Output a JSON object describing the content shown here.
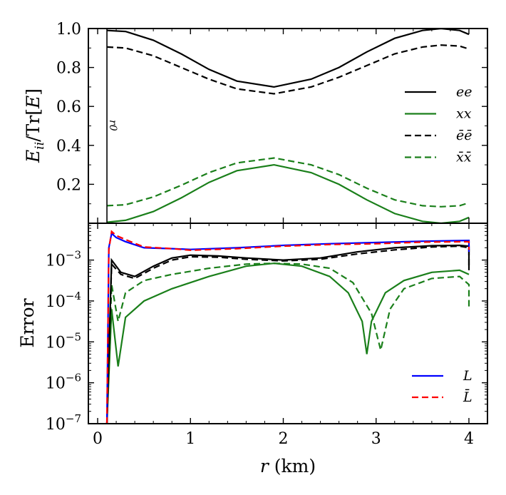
{
  "chart_data": [
    {
      "type": "line",
      "panel": "top",
      "ylabel": "E_ii/Tr[E]",
      "ylabel_parts": {
        "main": "E",
        "sub": "ii",
        "slash": "/Tr[",
        "mid": "E",
        "end": "]"
      },
      "xlim": [
        -0.1,
        4.2
      ],
      "ylim": [
        0.0,
        1.0
      ],
      "yticks": [
        {
          "value": 0.2,
          "label": "0.2"
        },
        {
          "value": 0.4,
          "label": "0.4"
        },
        {
          "value": 0.6,
          "label": "0.6"
        },
        {
          "value": 0.8,
          "label": "0.8"
        },
        {
          "value": 1.0,
          "label": "1.0"
        }
      ],
      "annotation": {
        "text": "r0",
        "x": 0.1
      },
      "legend_position": "right",
      "series": [
        {
          "name": "ee",
          "label": "ee",
          "color": "#000000",
          "dash": "solid",
          "x": [
            0.1,
            0.3,
            0.6,
            0.9,
            1.2,
            1.5,
            1.9,
            2.3,
            2.6,
            2.9,
            3.2,
            3.5,
            3.7,
            3.9,
            4.0
          ],
          "y": [
            0.99,
            0.985,
            0.94,
            0.87,
            0.79,
            0.73,
            0.7,
            0.74,
            0.8,
            0.88,
            0.95,
            0.99,
            1.0,
            0.99,
            0.97
          ]
        },
        {
          "name": "xx",
          "label": "xx",
          "color": "#1a7f1a",
          "dash": "solid",
          "x": [
            0.1,
            0.3,
            0.6,
            0.9,
            1.2,
            1.5,
            1.9,
            2.3,
            2.6,
            2.9,
            3.2,
            3.5,
            3.7,
            3.9,
            4.0
          ],
          "y": [
            0.005,
            0.015,
            0.06,
            0.13,
            0.21,
            0.27,
            0.3,
            0.26,
            0.2,
            0.12,
            0.05,
            0.01,
            0.0,
            0.01,
            0.03
          ]
        },
        {
          "name": "eebar",
          "label": "ēē",
          "color": "#000000",
          "dash": "dashed",
          "x": [
            0.1,
            0.3,
            0.6,
            0.9,
            1.2,
            1.5,
            1.9,
            2.3,
            2.6,
            2.9,
            3.2,
            3.5,
            3.7,
            3.9,
            4.0
          ],
          "y": [
            0.905,
            0.9,
            0.86,
            0.8,
            0.74,
            0.69,
            0.665,
            0.7,
            0.75,
            0.81,
            0.87,
            0.905,
            0.915,
            0.91,
            0.895
          ]
        },
        {
          "name": "xxbar",
          "label": "x̄x̄",
          "color": "#1a7f1a",
          "dash": "dashed",
          "x": [
            0.1,
            0.3,
            0.6,
            0.9,
            1.2,
            1.5,
            1.9,
            2.3,
            2.6,
            2.9,
            3.2,
            3.5,
            3.7,
            3.9,
            4.0
          ],
          "y": [
            0.09,
            0.095,
            0.135,
            0.195,
            0.26,
            0.31,
            0.335,
            0.3,
            0.25,
            0.18,
            0.12,
            0.09,
            0.085,
            0.09,
            0.105
          ]
        }
      ]
    },
    {
      "type": "line",
      "panel": "bottom",
      "ylabel": "Error",
      "xlabel": "r (km)",
      "xlabel_parts": {
        "var": "r",
        "unit": " (km)"
      },
      "xlim": [
        -0.1,
        4.2
      ],
      "xticks": [
        {
          "value": 0,
          "label": "0"
        },
        {
          "value": 1,
          "label": "1"
        },
        {
          "value": 2,
          "label": "2"
        },
        {
          "value": 3,
          "label": "3"
        },
        {
          "value": 4,
          "label": "4"
        }
      ],
      "yscale": "log",
      "ylim_log10": [
        -7,
        -2.1
      ],
      "yticks": [
        {
          "value": -7,
          "label": "-7"
        },
        {
          "value": -6,
          "label": "-6"
        },
        {
          "value": -5,
          "label": "-5"
        },
        {
          "value": -4,
          "label": "-4"
        },
        {
          "value": -3,
          "label": "-3"
        }
      ],
      "ytick_base": "10",
      "legend_position": "bottom-right",
      "series": [
        {
          "name": "L",
          "label": "L",
          "color": "#0000ff",
          "dash": "solid",
          "legend": true,
          "x": [
            0.1,
            0.12,
            0.15,
            0.2,
            0.3,
            0.5,
            0.8,
            1.0,
            1.5,
            2.0,
            2.5,
            3.0,
            3.5,
            4.0,
            4.0
          ],
          "log10y": [
            -7.0,
            -2.7,
            -2.35,
            -2.45,
            -2.55,
            -2.7,
            -2.72,
            -2.74,
            -2.7,
            -2.64,
            -2.6,
            -2.57,
            -2.54,
            -2.52,
            -2.8
          ]
        },
        {
          "name": "Lbar",
          "label": "L̄",
          "color": "#ff0000",
          "dash": "dashed",
          "legend": true,
          "x": [
            0.1,
            0.12,
            0.15,
            0.2,
            0.3,
            0.5,
            0.8,
            1.0,
            1.5,
            2.0,
            2.5,
            3.0,
            3.5,
            4.0,
            4.0
          ],
          "log10y": [
            -7.0,
            -2.75,
            -2.3,
            -2.4,
            -2.5,
            -2.68,
            -2.72,
            -2.76,
            -2.72,
            -2.66,
            -2.62,
            -2.6,
            -2.56,
            -2.55,
            -2.75
          ]
        },
        {
          "name": "ee_err",
          "color": "#000000",
          "dash": "solid",
          "legend": false,
          "x": [
            0.1,
            0.15,
            0.25,
            0.4,
            0.6,
            0.8,
            1.0,
            1.3,
            1.6,
            2.0,
            2.4,
            2.8,
            3.2,
            3.6,
            3.9,
            4.0,
            4.0
          ],
          "log10y": [
            -7.0,
            -3.0,
            -3.3,
            -3.4,
            -3.15,
            -2.95,
            -2.88,
            -2.9,
            -2.95,
            -3.0,
            -2.95,
            -2.8,
            -2.7,
            -2.65,
            -2.64,
            -2.66,
            -3.25
          ]
        },
        {
          "name": "eebar_err",
          "color": "#000000",
          "dash": "dashed",
          "legend": false,
          "x": [
            0.1,
            0.15,
            0.25,
            0.4,
            0.6,
            0.8,
            1.0,
            1.3,
            1.6,
            2.0,
            2.4,
            2.8,
            3.2,
            3.6,
            3.9,
            4.0,
            4.0
          ],
          "log10y": [
            -7.0,
            -3.1,
            -3.35,
            -3.45,
            -3.2,
            -3.0,
            -2.92,
            -2.93,
            -2.98,
            -3.02,
            -2.98,
            -2.85,
            -2.75,
            -2.68,
            -2.66,
            -2.7,
            -3.2
          ]
        },
        {
          "name": "xx_err",
          "color": "#1a7f1a",
          "dash": "solid",
          "legend": false,
          "x": [
            0.1,
            0.15,
            0.22,
            0.3,
            0.5,
            0.8,
            1.2,
            1.6,
            1.9,
            2.2,
            2.5,
            2.7,
            2.85,
            2.9,
            2.95,
            3.1,
            3.3,
            3.6,
            3.9,
            4.0
          ],
          "log10y": [
            -7.0,
            -4.2,
            -5.6,
            -4.4,
            -4.0,
            -3.7,
            -3.4,
            -3.15,
            -3.08,
            -3.15,
            -3.4,
            -3.8,
            -4.5,
            -5.3,
            -4.5,
            -3.8,
            -3.5,
            -3.3,
            -3.25,
            -3.35
          ]
        },
        {
          "name": "xxbar_err",
          "color": "#1a7f1a",
          "dash": "dashed",
          "legend": false,
          "x": [
            0.1,
            0.15,
            0.22,
            0.3,
            0.5,
            0.8,
            1.2,
            1.6,
            1.9,
            2.2,
            2.5,
            2.75,
            2.95,
            3.05,
            3.15,
            3.3,
            3.6,
            3.9,
            4.0,
            4.0
          ],
          "log10y": [
            -7.0,
            -3.6,
            -4.5,
            -3.8,
            -3.5,
            -3.35,
            -3.2,
            -3.1,
            -3.08,
            -3.1,
            -3.2,
            -3.55,
            -4.3,
            -5.2,
            -4.2,
            -3.7,
            -3.45,
            -3.4,
            -3.6,
            -4.2
          ]
        }
      ]
    }
  ]
}
